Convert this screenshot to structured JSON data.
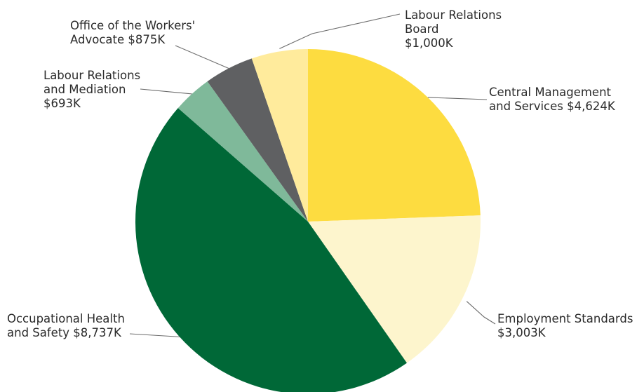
{
  "chart_data": {
    "type": "pie",
    "title": "",
    "start_angle_deg": 0,
    "direction": "clockwise",
    "slices": [
      {
        "name": "Central Management and Services",
        "label_lines": [
          "Central Management",
          "and Services $4,624K"
        ],
        "value": 4624,
        "color": "#fddc40"
      },
      {
        "name": "Employment Standards",
        "label_lines": [
          "Employment Standards",
          "$3,003K"
        ],
        "value": 3003,
        "color": "#fdf5cd"
      },
      {
        "name": "Occupational Health and Safety",
        "label_lines": [
          "Occupational Health",
          "and Safety $8,737K"
        ],
        "value": 8737,
        "color": "#006837"
      },
      {
        "name": "Labour Relations and Mediation",
        "label_lines": [
          "Labour Relations",
          "and Mediation",
          "$693K"
        ],
        "value": 693,
        "color": "#7fb99a"
      },
      {
        "name": "Office of the Workers' Advocate",
        "label_lines": [
          "Office of the Workers'",
          "Advocate $875K"
        ],
        "value": 875,
        "color": "#5f6062"
      },
      {
        "name": "Labour Relations Board",
        "label_lines": [
          "Labour Relations",
          "Board",
          "$1,000K"
        ],
        "value": 1000,
        "color": "#ffeb9c"
      }
    ]
  }
}
